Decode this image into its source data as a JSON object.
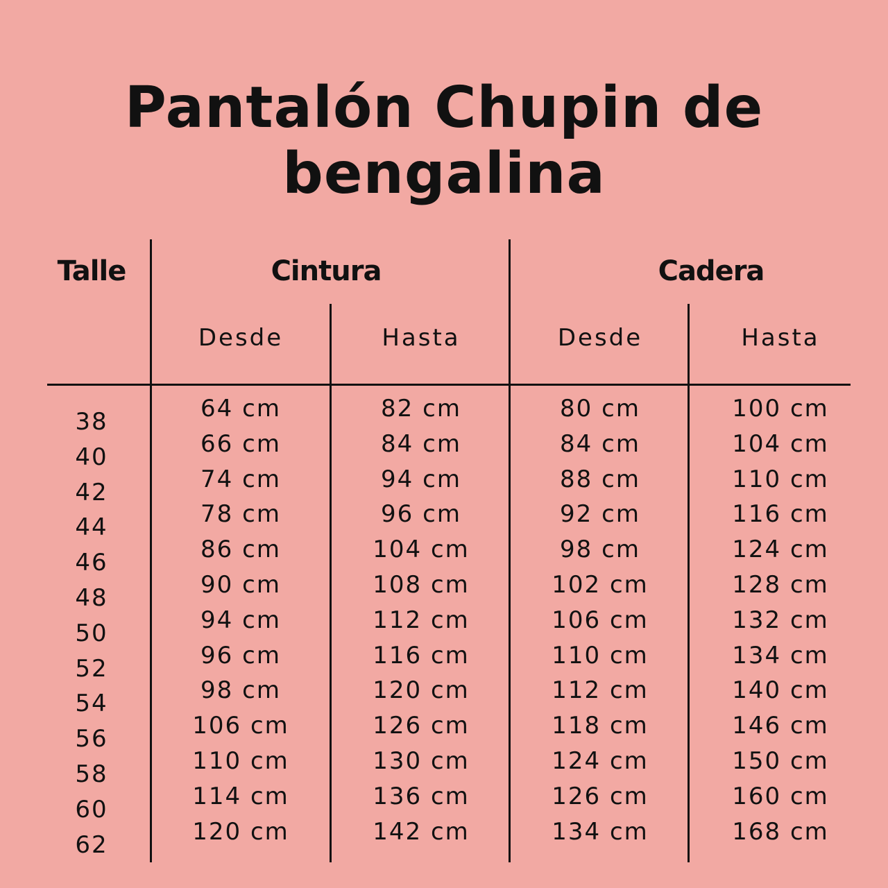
{
  "title": "Pantalón Chupin de bengalina",
  "background_color": "#f2a9a3",
  "headers": {
    "talle": "Talle",
    "cintura": "Cintura",
    "cadera": "Cadera",
    "cintura_desde": "Desde",
    "cintura_hasta": "Hasta",
    "cadera_desde": "Desde",
    "cadera_hasta": "Hasta"
  },
  "talles": [
    "38",
    "40",
    "42",
    "44",
    "46",
    "48",
    "50",
    "52",
    "54",
    "56",
    "58",
    "60",
    "62"
  ],
  "cintura_desde": [
    "64 cm",
    "66 cm",
    "74 cm",
    "78 cm",
    "86 cm",
    "90 cm",
    "94 cm",
    "96 cm",
    "98 cm",
    "106 cm",
    "110 cm",
    "114 cm",
    "120 cm"
  ],
  "cintura_hasta": [
    "82 cm",
    "84 cm",
    "94 cm",
    "96 cm",
    "104 cm",
    "108 cm",
    "112 cm",
    "116 cm",
    "120 cm",
    "126 cm",
    "130 cm",
    "136 cm",
    "142 cm"
  ],
  "cadera_desde": [
    "80 cm",
    "84 cm",
    "88 cm",
    "92 cm",
    "98 cm",
    "102 cm",
    "106 cm",
    "110 cm",
    "112 cm",
    "118 cm",
    "124 cm",
    "126 cm",
    "134 cm"
  ],
  "cadera_hasta": [
    "100 cm",
    "104 cm",
    "110 cm",
    "116 cm",
    "124 cm",
    "128 cm",
    "132 cm",
    "134 cm",
    "140 cm",
    "146 cm",
    "150 cm",
    "160 cm",
    "168 cm"
  ]
}
